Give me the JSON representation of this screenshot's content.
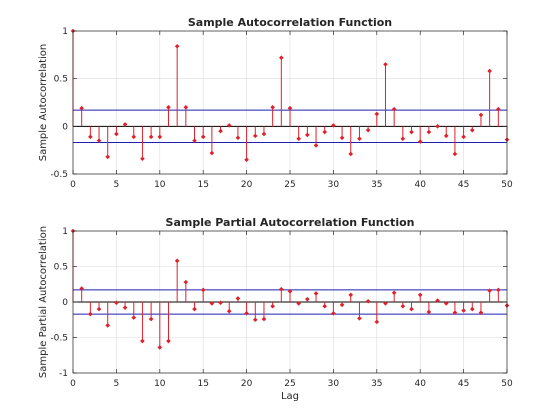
{
  "chart_data": [
    {
      "type": "stem",
      "title": "Sample Autocorrelation Function",
      "xlabel": "",
      "ylabel": "Sample Autocorrelation",
      "xlim": [
        0,
        50
      ],
      "ylim": [
        -0.5,
        1
      ],
      "xticks": [
        0,
        5,
        10,
        15,
        20,
        25,
        30,
        35,
        40,
        45,
        50
      ],
      "yticks": [
        -0.5,
        0,
        0.5,
        1
      ],
      "ytick_labels": [
        "-0.5",
        "0",
        "0.5",
        "1"
      ],
      "grid": true,
      "confidence_bound": 0.17,
      "lags": [
        0,
        1,
        2,
        3,
        4,
        5,
        6,
        7,
        8,
        9,
        10,
        11,
        12,
        13,
        14,
        15,
        16,
        17,
        18,
        19,
        20,
        21,
        22,
        23,
        24,
        25,
        26,
        27,
        28,
        29,
        30,
        31,
        32,
        33,
        34,
        35,
        36,
        37,
        38,
        39,
        40,
        41,
        42,
        43,
        44,
        45,
        46,
        47,
        48,
        49,
        50
      ],
      "values": [
        1.0,
        0.19,
        -0.11,
        -0.15,
        -0.32,
        -0.08,
        0.02,
        -0.11,
        -0.34,
        -0.11,
        -0.11,
        0.2,
        0.84,
        0.2,
        -0.15,
        -0.11,
        -0.28,
        -0.05,
        0.01,
        -0.12,
        -0.35,
        -0.1,
        -0.08,
        0.2,
        0.72,
        0.19,
        -0.13,
        -0.09,
        -0.2,
        -0.06,
        0.01,
        -0.12,
        -0.29,
        -0.13,
        -0.04,
        0.13,
        0.65,
        0.18,
        -0.13,
        -0.06,
        -0.16,
        -0.06,
        0.0,
        -0.1,
        -0.29,
        -0.11,
        -0.04,
        0.12,
        0.58,
        0.18,
        -0.14
      ]
    },
    {
      "type": "stem",
      "title": "Sample Partial Autocorrelation Function",
      "xlabel": "Lag",
      "ylabel": "Sample Partial Autocorrelation",
      "xlim": [
        0,
        50
      ],
      "ylim": [
        -1,
        1
      ],
      "xticks": [
        0,
        5,
        10,
        15,
        20,
        25,
        30,
        35,
        40,
        45,
        50
      ],
      "yticks": [
        -1,
        -0.5,
        0,
        0.5,
        1
      ],
      "ytick_labels": [
        "-1",
        "-0.5",
        "0",
        "0.5",
        "1"
      ],
      "grid": true,
      "confidence_bound": 0.17,
      "lags": [
        0,
        1,
        2,
        3,
        4,
        5,
        6,
        7,
        8,
        9,
        10,
        11,
        12,
        13,
        14,
        15,
        16,
        17,
        18,
        19,
        20,
        21,
        22,
        23,
        24,
        25,
        26,
        27,
        28,
        29,
        30,
        31,
        32,
        33,
        34,
        35,
        36,
        37,
        38,
        39,
        40,
        41,
        42,
        43,
        44,
        45,
        46,
        47,
        48,
        49,
        50
      ],
      "values": [
        1.0,
        0.19,
        -0.17,
        -0.1,
        -0.33,
        -0.01,
        -0.08,
        -0.22,
        -0.55,
        -0.24,
        -0.64,
        -0.55,
        0.58,
        0.28,
        -0.1,
        0.17,
        -0.02,
        -0.01,
        -0.13,
        0.05,
        -0.16,
        -0.25,
        -0.24,
        -0.06,
        0.18,
        0.15,
        -0.02,
        0.04,
        0.12,
        -0.06,
        -0.16,
        -0.04,
        0.1,
        -0.23,
        0.01,
        -0.28,
        -0.02,
        0.13,
        -0.06,
        -0.1,
        0.1,
        -0.14,
        0.02,
        -0.02,
        -0.15,
        -0.12,
        -0.1,
        -0.15,
        0.16,
        0.17,
        -0.05
      ]
    }
  ]
}
